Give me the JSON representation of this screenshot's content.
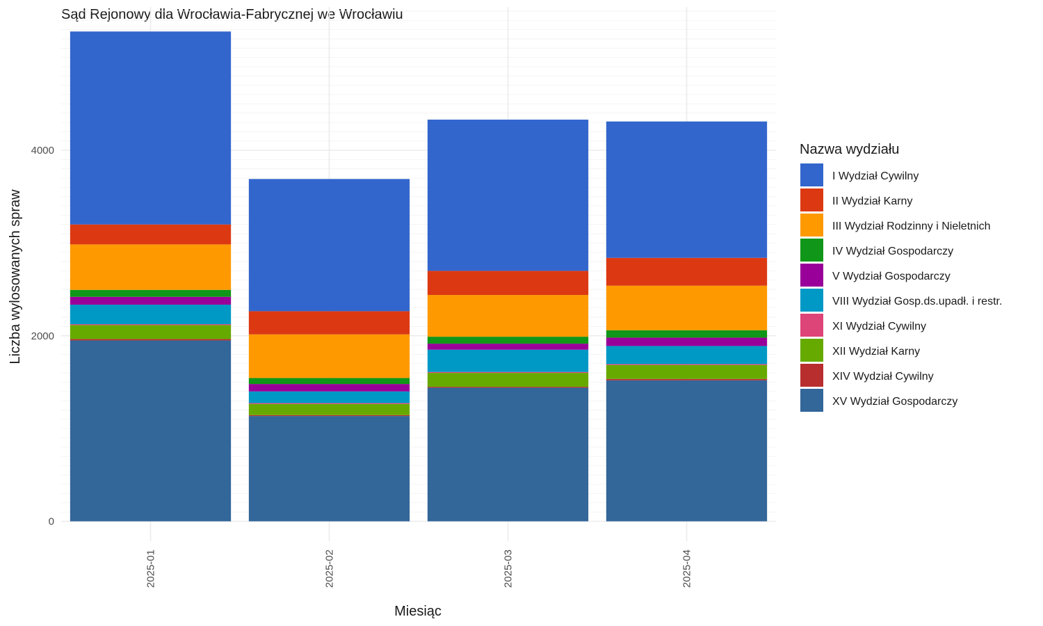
{
  "chart_data": {
    "type": "bar",
    "stacked": true,
    "title": "Sąd Rejonowy dla Wrocławia-Fabrycznej we Wrocławiu",
    "xlabel": "Miesiąc",
    "ylabel": "Liczba wylosowanych spraw",
    "ylim": [
      0,
      5500
    ],
    "yticks": [
      0,
      2000,
      4000
    ],
    "grid": true,
    "legend_title": "Nazwa wydziału",
    "legend_position": "right",
    "categories": [
      "2025-01",
      "2025-02",
      "2025-03",
      "2025-04"
    ],
    "series": [
      {
        "name": "XV Wydział Gospodarczy",
        "color": "#336699",
        "values": [
          1950,
          1135,
          1440,
          1520
        ]
      },
      {
        "name": "XIV Wydział Cywilny",
        "color": "#B82E2E",
        "values": [
          15,
          10,
          10,
          15
        ]
      },
      {
        "name": "XII Wydział Karny",
        "color": "#66AA00",
        "values": [
          150,
          120,
          150,
          150
        ]
      },
      {
        "name": "XI Wydział Cywilny",
        "color": "#DD4477",
        "values": [
          10,
          10,
          10,
          10
        ]
      },
      {
        "name": "VIII Wydział Gosp.ds.upadł. i restr.",
        "color": "#0099C6",
        "values": [
          210,
          125,
          240,
          195
        ]
      },
      {
        "name": "V Wydział Gospodarczy",
        "color": "#990099",
        "values": [
          85,
          80,
          65,
          90
        ]
      },
      {
        "name": "IV Wydział Gospodarczy",
        "color": "#109618",
        "values": [
          75,
          65,
          75,
          80
        ]
      },
      {
        "name": "III Wydział Rodzinny i Nieletnich",
        "color": "#FF9900",
        "values": [
          490,
          470,
          450,
          480
        ]
      },
      {
        "name": "II Wydział Karny",
        "color": "#DC3912",
        "values": [
          215,
          250,
          260,
          300
        ]
      },
      {
        "name": "I Wydział Cywilny",
        "color": "#3366CC",
        "values": [
          2080,
          1425,
          1630,
          1470
        ]
      }
    ],
    "legend_order": [
      "I Wydział Cywilny",
      "II Wydział Karny",
      "III Wydział Rodzinny i Nieletnich",
      "IV Wydział Gospodarczy",
      "V Wydział Gospodarczy",
      "VIII Wydział Gosp.ds.upadł. i restr.",
      "XI Wydział Cywilny",
      "XII Wydział Karny",
      "XIV Wydział Cywilny",
      "XV Wydział Gospodarczy"
    ]
  }
}
